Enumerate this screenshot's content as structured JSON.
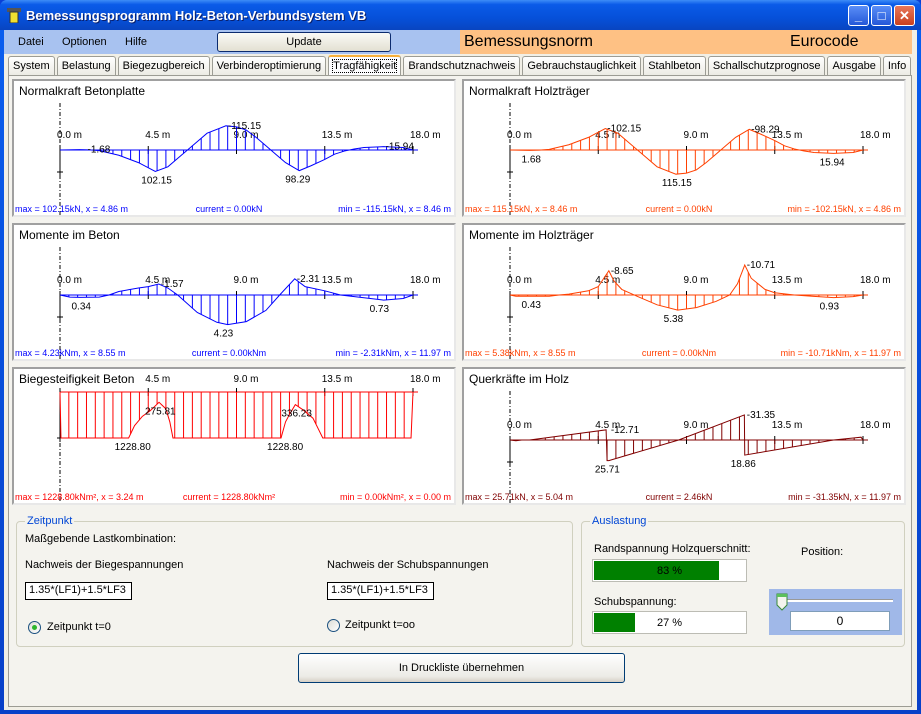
{
  "window": {
    "title": "Bemessungsprogramm Holz-Beton-Verbundsystem VB"
  },
  "menu": [
    "Datei",
    "Optionen",
    "Hilfe"
  ],
  "update_label": "Update",
  "norm": {
    "label": "Bemessungsnorm",
    "value": "Eurocode",
    "color": "#fec184"
  },
  "tabs": [
    "System",
    "Belastung",
    "Biegezugbereich",
    "Verbinderoptimierung",
    "Tragfähigkeit",
    "Brandschutznachweis",
    "Gebrauchstauglichkeit",
    "Stahlbeton",
    "Schallschutzprognose",
    "Ausgabe",
    "Info"
  ],
  "active_tab": "Tragfähigkeit",
  "chart_data": [
    {
      "type": "line",
      "title": "Normalkraft Betonplatte",
      "color": "#0000ff",
      "x_unit": "m",
      "ticks": [
        "0.0 m",
        "4.5 m",
        "9.0 m",
        "13.5 m",
        "18.0 m"
      ],
      "points": [
        [
          0,
          0
        ],
        [
          1,
          -1.68
        ],
        [
          1.5,
          -0.5
        ],
        [
          2,
          3
        ],
        [
          3,
          25
        ],
        [
          4,
          60
        ],
        [
          4.86,
          102.15
        ],
        [
          5.5,
          80
        ],
        [
          6,
          40
        ],
        [
          6.5,
          0
        ],
        [
          7,
          -40
        ],
        [
          7.5,
          -80
        ],
        [
          8.46,
          -115.15
        ],
        [
          9,
          -110
        ],
        [
          9.5,
          -95
        ],
        [
          10,
          -60
        ],
        [
          10.5,
          -20
        ],
        [
          11,
          20
        ],
        [
          11.5,
          60
        ],
        [
          12.2,
          98.29
        ],
        [
          12.8,
          75
        ],
        [
          13.5,
          45
        ],
        [
          14,
          20
        ],
        [
          14.5,
          5
        ],
        [
          15,
          -5
        ],
        [
          15.5,
          -12
        ],
        [
          16.5,
          -15.94
        ],
        [
          17.5,
          -12
        ],
        [
          18,
          0
        ]
      ],
      "annotations": [
        {
          "text": "-1.68",
          "x": 1.3,
          "v": -1.68
        },
        {
          "text": "102.15",
          "x": 4.86,
          "v": 102.15
        },
        {
          "text": "-115.15",
          "x": 8.46,
          "v": -115.15
        },
        {
          "text": "98.29",
          "x": 12.2,
          "v": 98.29
        },
        {
          "text": "-15.94",
          "x": 16.5,
          "v": -15.94
        }
      ],
      "footer": [
        "max = 102.15kN, x = 4.86 m",
        "current = 0.00kN",
        "min = -115.15kN, x = 8.46 m"
      ]
    },
    {
      "type": "line",
      "title": "Normalkraft Holzträger",
      "color": "#ff4000",
      "x_unit": "m",
      "ticks": [
        "0.0 m",
        "4.5 m",
        "9.0 m",
        "13.5 m",
        "18.0 m"
      ],
      "points": [
        [
          0,
          0
        ],
        [
          1,
          1.68
        ],
        [
          1.5,
          0.5
        ],
        [
          2,
          -3
        ],
        [
          3,
          -25
        ],
        [
          4,
          -60
        ],
        [
          4.86,
          -102.15
        ],
        [
          5.5,
          -80
        ],
        [
          6,
          -40
        ],
        [
          6.5,
          0
        ],
        [
          7,
          40
        ],
        [
          7.5,
          80
        ],
        [
          8.46,
          115.15
        ],
        [
          9,
          110
        ],
        [
          9.5,
          95
        ],
        [
          10,
          60
        ],
        [
          10.5,
          20
        ],
        [
          11,
          -20
        ],
        [
          11.5,
          -60
        ],
        [
          12.2,
          -98.29
        ],
        [
          12.8,
          -75
        ],
        [
          13.5,
          -45
        ],
        [
          14,
          -20
        ],
        [
          14.5,
          -5
        ],
        [
          15,
          5
        ],
        [
          15.5,
          12
        ],
        [
          16.5,
          15.94
        ],
        [
          17.5,
          12
        ],
        [
          18,
          0
        ]
      ],
      "annotations": [
        {
          "text": "1.68",
          "x": 1.3,
          "v": 1.68
        },
        {
          "text": "-102.15",
          "x": 4.86,
          "v": -102.15
        },
        {
          "text": "115.15",
          "x": 8.46,
          "v": 115.15
        },
        {
          "text": "-98.29",
          "x": 12.2,
          "v": -98.29
        },
        {
          "text": "15.94",
          "x": 16.5,
          "v": 15.94
        }
      ],
      "footer": [
        "max = 115.15kN, x = 8.46 m",
        "current = 0.00kN",
        "min = -102.15kN, x = 4.86 m"
      ]
    },
    {
      "type": "line",
      "title": "Momente im Beton",
      "color": "#0000ff",
      "x_unit": "m",
      "ticks": [
        "0.0 m",
        "4.5 m",
        "9.0 m",
        "13.5 m",
        "18.0 m"
      ],
      "points": [
        [
          0,
          0
        ],
        [
          0.5,
          0.3
        ],
        [
          1,
          0.34
        ],
        [
          2,
          0.3
        ],
        [
          2.5,
          0
        ],
        [
          3,
          -0.5
        ],
        [
          4,
          -1.0
        ],
        [
          4.5,
          -1.2
        ],
        [
          5.04,
          -1.57
        ],
        [
          5.5,
          -1
        ],
        [
          6,
          0
        ],
        [
          7,
          2.5
        ],
        [
          8,
          3.9
        ],
        [
          8.55,
          4.23
        ],
        [
          9.5,
          3.8
        ],
        [
          10.5,
          2.2
        ],
        [
          11.2,
          0
        ],
        [
          11.97,
          -2.31
        ],
        [
          12.5,
          -1.2
        ],
        [
          13.5,
          -0.6
        ],
        [
          14.3,
          0
        ],
        [
          15.5,
          0.4
        ],
        [
          16.5,
          0.73
        ],
        [
          17.5,
          0.5
        ],
        [
          18,
          0
        ]
      ],
      "annotations": [
        {
          "text": "0.34",
          "x": 1.3,
          "v": 0.34
        },
        {
          "text": "-1.57",
          "x": 5.04,
          "v": -1.57
        },
        {
          "text": "4.23",
          "x": 8.55,
          "v": 4.23
        },
        {
          "text": "-2.31",
          "x": 11.97,
          "v": -2.31
        },
        {
          "text": "0.73",
          "x": 16.5,
          "v": 0.73
        }
      ],
      "footer": [
        "max = 4.23kNm, x = 8.55 m",
        "current = 0.00kNm",
        "min = -2.31kNm, x = 11.97 m"
      ]
    },
    {
      "type": "line",
      "title": "Momente im Holzträger",
      "color": "#ff4000",
      "x_unit": "m",
      "ticks": [
        "0.0 m",
        "4.5 m",
        "9.0 m",
        "13.5 m",
        "18.0 m"
      ],
      "points": [
        [
          0,
          0
        ],
        [
          0.3,
          0.43
        ],
        [
          2,
          0.43
        ],
        [
          2.5,
          0
        ],
        [
          3,
          -0.3
        ],
        [
          4,
          -1.5
        ],
        [
          4.5,
          -3
        ],
        [
          5.04,
          -8.65
        ],
        [
          5.3,
          -5
        ],
        [
          5.7,
          -2
        ],
        [
          6.5,
          0.5
        ],
        [
          7.5,
          3.5
        ],
        [
          8.55,
          5.38
        ],
        [
          9.5,
          4.5
        ],
        [
          10.5,
          2.3
        ],
        [
          11.2,
          0
        ],
        [
          11.6,
          -4
        ],
        [
          11.97,
          -10.71
        ],
        [
          12.3,
          -6
        ],
        [
          13,
          -2
        ],
        [
          13.5,
          -0.8
        ],
        [
          14.5,
          0
        ],
        [
          15.5,
          0.5
        ],
        [
          16.5,
          0.93
        ],
        [
          17.5,
          0.6
        ],
        [
          18,
          0
        ]
      ],
      "annotations": [
        {
          "text": "0.43",
          "x": 1.3,
          "v": 0.43
        },
        {
          "text": "-8.65",
          "x": 5.04,
          "v": -8.65
        },
        {
          "text": "5.38",
          "x": 8.55,
          "v": 5.38
        },
        {
          "text": "-10.71",
          "x": 11.97,
          "v": -10.71
        },
        {
          "text": "0.93",
          "x": 16.5,
          "v": 0.93
        }
      ],
      "footer": [
        "max = 5.38kNm, x = 8.55 m",
        "current = 0.00kNm",
        "min = -10.71kNm, x = 11.97 m"
      ]
    },
    {
      "type": "line",
      "title": "Biegesteifigkeit Beton",
      "color": "#ff0000",
      "x_unit": "m",
      "ticks": [
        "",
        "4.5 m",
        "9.0 m",
        "13.5 m",
        "18.0 m"
      ],
      "points": [
        [
          0,
          0
        ],
        [
          0.05,
          1228.8
        ],
        [
          3.5,
          1228.8
        ],
        [
          3.8,
          900
        ],
        [
          4.2,
          650
        ],
        [
          4.6,
          500
        ],
        [
          5.05,
          275.81
        ],
        [
          5.4,
          450
        ],
        [
          5.6,
          800
        ],
        [
          5.76,
          1228.8
        ],
        [
          11.27,
          1228.8
        ],
        [
          11.5,
          800
        ],
        [
          11.7,
          600
        ],
        [
          12.0,
          336.23
        ],
        [
          12.4,
          480
        ],
        [
          12.9,
          700
        ],
        [
          13.4,
          1228.8
        ],
        [
          17.9,
          1228.8
        ],
        [
          18,
          0
        ]
      ],
      "annotations": [
        {
          "text": "1228.80",
          "x": 3.5,
          "v": 1228.8
        },
        {
          "text": "275.81",
          "x": 5.05,
          "v": 275.81
        },
        {
          "text": "1228.80",
          "x": 11.27,
          "v": 1228.8
        },
        {
          "text": "336.23",
          "x": 12.0,
          "v": 336.23
        }
      ],
      "footer": [
        "max = 1228.80kNm², x = 3.24 m",
        "current = 1228.80kNm²",
        "min = 0.00kNm², x = 0.00 m"
      ]
    },
    {
      "type": "line",
      "title": "Querkräfte im Holz",
      "color": "#800000",
      "x_unit": "m",
      "ticks": [
        "0.0 m",
        "4.5 m",
        "9.0 m",
        "13.5 m",
        "18.0 m"
      ],
      "points": [
        [
          0,
          0
        ],
        [
          0.3,
          1
        ],
        [
          0.6,
          0
        ],
        [
          1.0,
          0
        ],
        [
          4.9,
          -12.71
        ],
        [
          4.95,
          25.71
        ],
        [
          5.04,
          25.71
        ],
        [
          8.6,
          0
        ],
        [
          11.95,
          -31.35
        ],
        [
          11.97,
          18.86
        ],
        [
          16.5,
          0
        ],
        [
          17.5,
          -2.5
        ],
        [
          17.9,
          -3.5
        ],
        [
          18,
          0
        ]
      ],
      "annotations": [
        {
          "text": "-12.71",
          "x": 5.04,
          "v": -12.71
        },
        {
          "text": "25.71",
          "x": 5.04,
          "v": 25.71
        },
        {
          "text": "-31.35",
          "x": 11.97,
          "v": -31.35
        },
        {
          "text": "18.86",
          "x": 11.97,
          "v": 18.86
        }
      ],
      "footer": [
        "max = 25.71kN, x = 5.04 m",
        "current = 2.46kN",
        "min = -31.35kN, x = 11.97 m"
      ]
    }
  ],
  "zeitpunkt": {
    "legend": "Zeitpunkt",
    "heading": "Maßgebende Lastkombination:",
    "biege_label": "Nachweis der Biegespannungen",
    "biege_value": "1.35*(LF1)+1.5*LF3",
    "schub_label": "Nachweis der Schubspannungen",
    "schub_value": "1.35*(LF1)+1.5*LF3",
    "radio_t0": "Zeitpunkt t=0",
    "radio_tinf": "Zeitpunkt t=oo",
    "selected": "t=0"
  },
  "auslastung": {
    "legend": "Auslastung",
    "rand_label": "Randspannung Holzquerschnitt:",
    "rand_percent": 83,
    "rand_text": "83 %",
    "schub_label": "Schubspannung:",
    "schub_percent": 27,
    "schub_text": "27 %",
    "position_label": "Position:",
    "position_value": "0",
    "slider_value": 0,
    "bar_color": "#008000"
  },
  "print_button": "In Druckliste übernehmen"
}
